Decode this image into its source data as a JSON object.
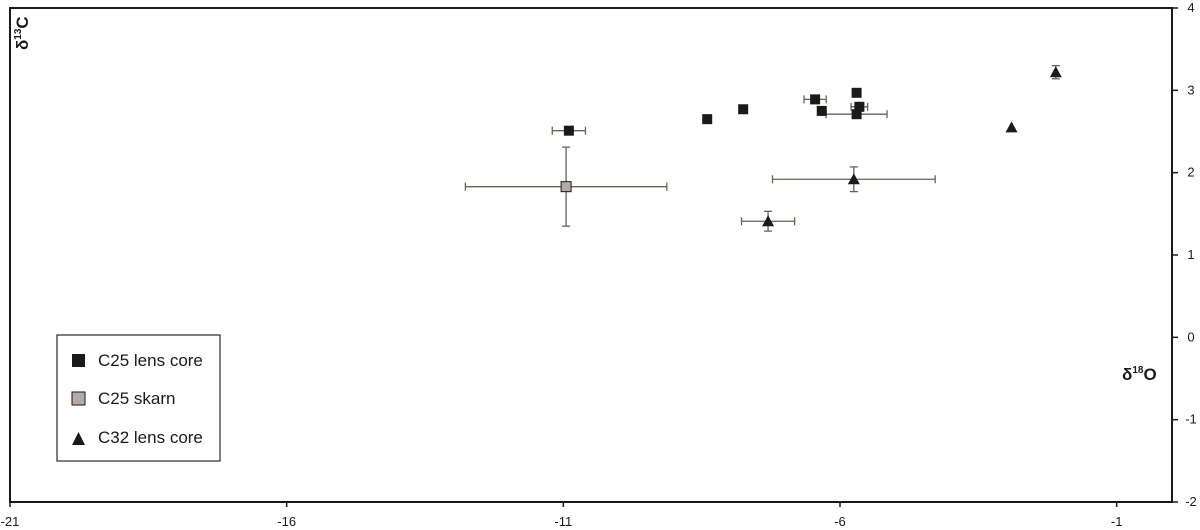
{
  "chart_data": {
    "type": "scatter",
    "title": "",
    "xlabel": {
      "base": "δ",
      "sup": "18",
      "elem": "O"
    },
    "ylabel": {
      "base": "δ",
      "sup": "13",
      "elem": "C"
    },
    "xlim": [
      -21,
      0
    ],
    "ylim": [
      -2,
      4
    ],
    "xticks": [
      -21,
      -16,
      -11,
      -6,
      -1
    ],
    "yticks": [
      -2,
      -1,
      0,
      1,
      2,
      3,
      4
    ],
    "grid": false,
    "legend_position": "bottom-left",
    "series": [
      {
        "name": "C25 lens core",
        "marker": "square",
        "color": "#1a1a1a",
        "points": [
          {
            "x": -10.9,
            "y": 2.51,
            "xerr": 0.3,
            "yerr": 0
          },
          {
            "x": -8.4,
            "y": 2.65,
            "xerr": 0,
            "yerr": 0
          },
          {
            "x": -7.75,
            "y": 2.77,
            "xerr": 0,
            "yerr": 0
          },
          {
            "x": -6.45,
            "y": 2.89,
            "xerr": 0.2,
            "yerr": 0
          },
          {
            "x": -6.33,
            "y": 2.75,
            "xerr": 0,
            "yerr": 0
          },
          {
            "x": -5.7,
            "y": 2.97,
            "xerr": 0,
            "yerr": 0
          },
          {
            "x": -5.65,
            "y": 2.8,
            "xerr": 0.15,
            "yerr": 0
          },
          {
            "x": -5.7,
            "y": 2.71,
            "xerr": 0.55,
            "yerr": 0
          }
        ]
      },
      {
        "name": "C25 skarn",
        "marker": "square",
        "color": "#b5aba4",
        "points": [
          {
            "x": -10.95,
            "y": 1.83,
            "xerr": 1.82,
            "yerr": 0.48
          }
        ]
      },
      {
        "name": "C32 lens core",
        "marker": "triangle",
        "color": "#1a1a1a",
        "points": [
          {
            "x": -7.3,
            "y": 1.41,
            "xerr": 0.48,
            "yerr": 0.12
          },
          {
            "x": -5.75,
            "y": 1.92,
            "xerr": 1.47,
            "yerr": 0.15
          },
          {
            "x": -2.9,
            "y": 2.55,
            "xerr": 0,
            "yerr": 0
          },
          {
            "x": -2.1,
            "y": 3.22,
            "xerr": 0,
            "yerr": 0.08
          }
        ]
      }
    ]
  }
}
